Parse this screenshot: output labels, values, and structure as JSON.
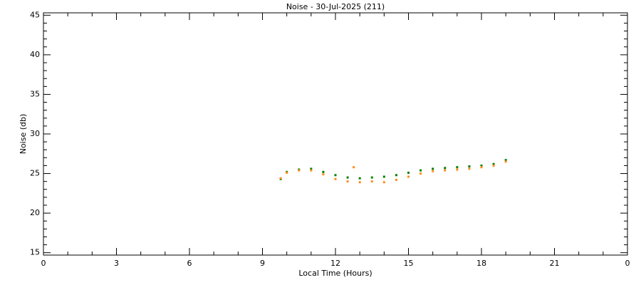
{
  "chart_data": {
    "type": "scatter",
    "title": "Noise - 30-Jul-2025 (211)",
    "x_label": "Local Time (Hours)",
    "y_label": "Noise (db)",
    "xlim": [
      0,
      24
    ],
    "xticks": [
      0,
      3,
      6,
      9,
      12,
      15,
      18,
      21,
      {
        "value": 24,
        "label": "0"
      }
    ],
    "ylim": [
      14.7,
      45.3
    ],
    "yticks": [
      15,
      20,
      25,
      30,
      35,
      40,
      45
    ],
    "series": [
      {
        "color": "#008000",
        "x": [
          9.75,
          10.0,
          10.5,
          11.0,
          11.5,
          12.0,
          12.5,
          13.0,
          13.5,
          14.0,
          14.5,
          15.0,
          15.5,
          16.0,
          16.5,
          17.0,
          17.5,
          18.0,
          18.5,
          19.0
        ],
        "values": [
          24.3,
          25.2,
          25.5,
          25.6,
          25.2,
          24.8,
          24.5,
          24.4,
          24.5,
          24.6,
          24.8,
          25.1,
          25.4,
          25.6,
          25.7,
          25.8,
          25.9,
          26.0,
          26.2,
          26.7
        ]
      },
      {
        "color": "#ff8c1a",
        "x": [
          9.75,
          10.0,
          10.5,
          11.0,
          11.5,
          12.0,
          12.5,
          12.75,
          13.0,
          13.5,
          14.0,
          14.5,
          15.0,
          15.5,
          16.0,
          16.5,
          17.0,
          17.5,
          18.0,
          18.5,
          19.0
        ],
        "values": [
          24.4,
          25.1,
          25.4,
          25.4,
          24.9,
          24.3,
          24.0,
          25.8,
          23.9,
          24.0,
          23.9,
          24.2,
          24.6,
          25.0,
          25.3,
          25.4,
          25.5,
          25.6,
          25.8,
          26.0,
          26.5
        ]
      }
    ]
  }
}
